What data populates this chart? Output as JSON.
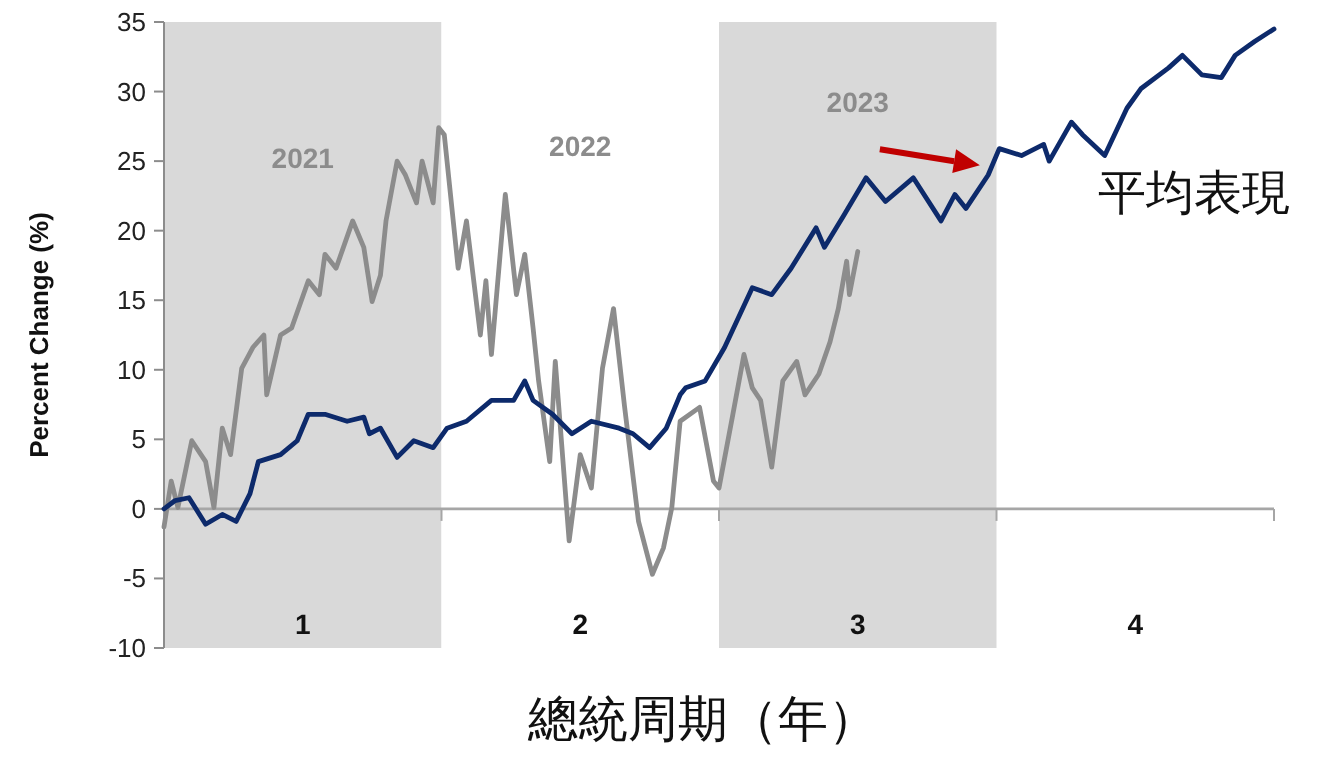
{
  "chart_data": {
    "type": "line",
    "xlabel": "總統周期（年）",
    "ylabel": "Percent Change (%)",
    "xlim": [
      0,
      4
    ],
    "ylim": [
      -10,
      35
    ],
    "xticks": [
      {
        "value": 0,
        "label": null
      },
      {
        "value": 0.5,
        "label": "1"
      },
      {
        "value": 1,
        "label": null
      },
      {
        "value": 1.5,
        "label": "2"
      },
      {
        "value": 2,
        "label": null
      },
      {
        "value": 2.5,
        "label": "3"
      },
      {
        "value": 3,
        "label": null
      },
      {
        "value": 3.5,
        "label": "4"
      },
      {
        "value": 4,
        "label": null
      }
    ],
    "yticks": [
      -10,
      -5,
      0,
      5,
      10,
      15,
      20,
      25,
      30,
      35
    ],
    "bands": [
      {
        "axis": "x",
        "from": 0,
        "to": 1,
        "color": "#d9d9d9",
        "label": "2021"
      },
      {
        "axis": "x",
        "from": 1,
        "to": 2,
        "color": "#ffffff",
        "label": "2022"
      },
      {
        "axis": "x",
        "from": 2,
        "to": 3,
        "color": "#d9d9d9",
        "label": "2023"
      }
    ],
    "annotations": [
      {
        "text": "平均表現",
        "x": 2.94,
        "y": 24.7
      }
    ],
    "series": [
      {
        "color": "#8c8c8c",
        "x": [
          0,
          0.026,
          0.05,
          0.1,
          0.15,
          0.18,
          0.21,
          0.24,
          0.28,
          0.32,
          0.36,
          0.37,
          0.42,
          0.46,
          0.52,
          0.56,
          0.58,
          0.62,
          0.68,
          0.72,
          0.75,
          0.78,
          0.8,
          0.84,
          0.87,
          0.91,
          0.93,
          0.97,
          0.99,
          1.01,
          1.06,
          1.09,
          1.14,
          1.16,
          1.18,
          1.23,
          1.27,
          1.3,
          1.33,
          1.35,
          1.39,
          1.41,
          1.46,
          1.5,
          1.54,
          1.58,
          1.62,
          1.66,
          1.71,
          1.76,
          1.8,
          1.83,
          1.86,
          1.93,
          1.98,
          2.0,
          2.05,
          2.09,
          2.12,
          2.15,
          2.19,
          2.23,
          2.28,
          2.31,
          2.36,
          2.4,
          2.43,
          2.46,
          2.47,
          2.5
        ],
        "values": [
          -1.3,
          2,
          0.1,
          4.9,
          3.4,
          0.1,
          5.8,
          3.9,
          10.1,
          11.6,
          12.5,
          8.2,
          12.5,
          13,
          16.4,
          15.4,
          18.3,
          17.3,
          20.7,
          18.8,
          14.9,
          16.8,
          20.7,
          25,
          24,
          22,
          25,
          22,
          27.4,
          26.9,
          17.3,
          20.7,
          12.5,
          16.4,
          11.1,
          22.6,
          15.4,
          18.3,
          13,
          9.2,
          3.4,
          10.6,
          -2.3,
          3.9,
          1.5,
          10.1,
          14.4,
          7.3,
          -0.9,
          -4.7,
          -2.8,
          0.1,
          6.3,
          7.3,
          2,
          1.5,
          6.8,
          11.1,
          8.7,
          7.8,
          3,
          9.2,
          10.6,
          8.2,
          9.7,
          12,
          14.4,
          17.8,
          15.4,
          18.5
        ]
      },
      {
        "color": "#0d2a6b",
        "x": [
          0,
          0.04,
          0.09,
          0.15,
          0.21,
          0.26,
          0.31,
          0.34,
          0.42,
          0.48,
          0.52,
          0.58,
          0.66,
          0.72,
          0.74,
          0.78,
          0.84,
          0.9,
          0.97,
          1.02,
          1.09,
          1.18,
          1.26,
          1.3,
          1.33,
          1.4,
          1.47,
          1.54,
          1.64,
          1.69,
          1.75,
          1.81,
          1.86,
          1.88,
          1.95,
          2.02,
          2.12,
          2.19,
          2.26,
          2.35,
          2.38,
          2.45,
          2.53,
          2.6,
          2.7,
          2.8,
          2.85,
          2.89,
          2.97,
          3.01,
          3.09,
          3.17,
          3.19,
          3.27,
          3.31,
          3.39,
          3.47,
          3.52,
          3.62,
          3.67,
          3.74,
          3.81,
          3.86,
          3.93,
          4.0
        ],
        "values": [
          0,
          0.6,
          0.8,
          -1.1,
          -0.4,
          -0.9,
          1.1,
          3.4,
          3.9,
          4.9,
          6.8,
          6.8,
          6.3,
          6.6,
          5.4,
          5.8,
          3.7,
          4.9,
          4.4,
          5.8,
          6.3,
          7.8,
          7.8,
          9.2,
          7.8,
          6.8,
          5.4,
          6.3,
          5.8,
          5.4,
          4.4,
          5.8,
          8.2,
          8.7,
          9.2,
          11.6,
          15.9,
          15.4,
          17.3,
          20.2,
          18.8,
          21.1,
          23.8,
          22.1,
          23.8,
          20.7,
          22.6,
          21.6,
          24,
          25.9,
          25.4,
          26.2,
          25,
          27.8,
          26.9,
          25.4,
          28.8,
          30.2,
          31.7,
          32.6,
          31.2,
          31,
          32.6,
          33.6,
          34.5
        ]
      }
    ]
  }
}
